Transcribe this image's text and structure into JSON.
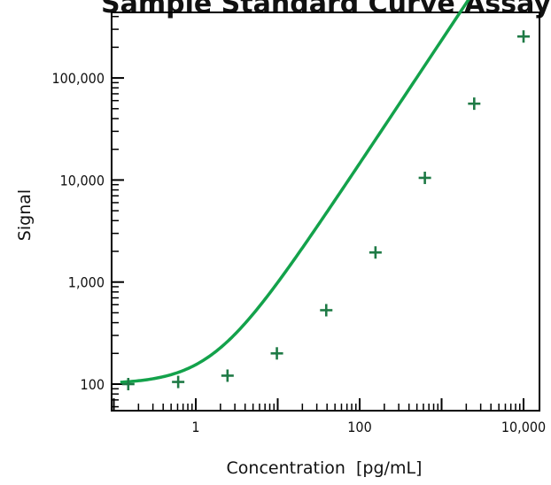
{
  "chart_data": {
    "type": "scatter",
    "title": "Sample Standard Curve Assay",
    "xlabel": "Concentration  [pg/mL]",
    "ylabel": "Signal",
    "x_scale": "log",
    "y_scale": "log",
    "xlim": [
      0.1,
      15000
    ],
    "ylim": [
      50,
      500000
    ],
    "x_ticks": [
      1,
      100,
      10000
    ],
    "x_tick_labels": [
      "1",
      "100",
      "10,000"
    ],
    "y_ticks": [
      100,
      1000,
      10000,
      100000
    ],
    "y_tick_labels": [
      "100",
      "1,000",
      "10,000",
      "100,000"
    ],
    "grid": false,
    "series": [
      {
        "marker": "plus",
        "color": "#1e7a45",
        "points": [
          {
            "x": 0.15,
            "y": 100
          },
          {
            "x": 0.61,
            "y": 105
          },
          {
            "x": 2.44,
            "y": 121
          },
          {
            "x": 9.77,
            "y": 200
          },
          {
            "x": 39.1,
            "y": 530
          },
          {
            "x": 156,
            "y": 1950
          },
          {
            "x": 625,
            "y": 10500
          },
          {
            "x": 2500,
            "y": 56000
          },
          {
            "x": 10000,
            "y": 255000
          }
        ]
      }
    ],
    "fit_curve": {
      "model": "4PL",
      "color": "#13a24b",
      "bottom": 100,
      "top": 1000000000,
      "ec50": 1000000,
      "hill": 1.21
    }
  }
}
